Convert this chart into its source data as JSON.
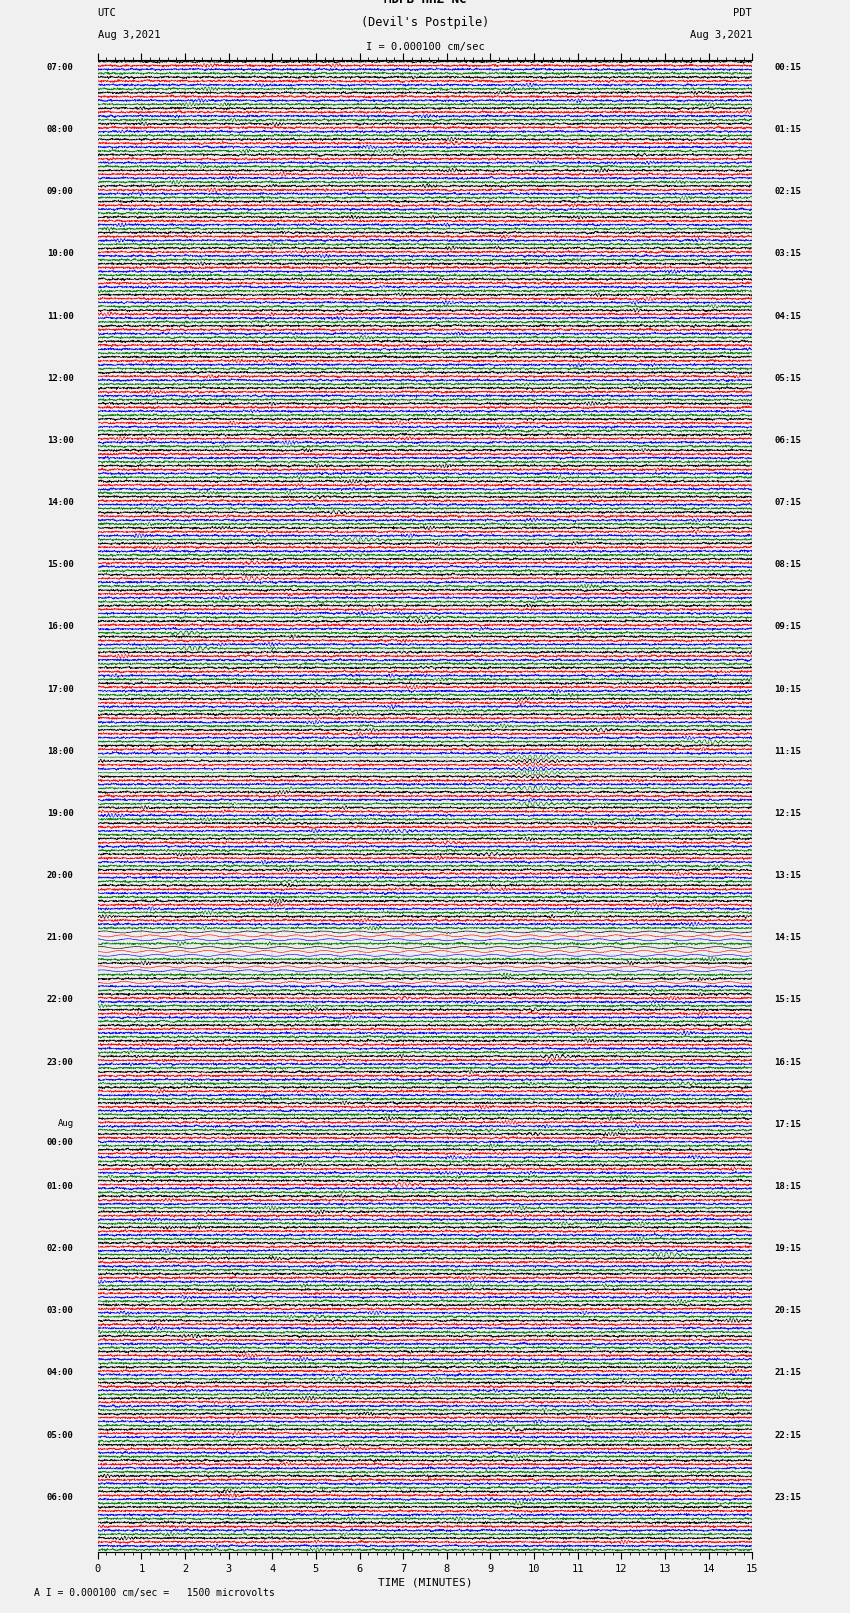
{
  "title_line1": "MDPB HHZ NC",
  "title_line2": "(Devil's Postpile)",
  "scale_label": "I = 0.000100 cm/sec",
  "footer_label": "A I = 0.000100 cm/sec =   1500 microvolts",
  "utc_label_line1": "UTC",
  "utc_label_line2": "Aug 3,2021",
  "pdt_label_line1": "PDT",
  "pdt_label_line2": "Aug 3,2021",
  "xlabel": "TIME (MINUTES)",
  "bg_color": "#f0f0f0",
  "trace_colors": [
    "black",
    "red",
    "blue",
    "green"
  ],
  "left_times_utc": [
    "07:00",
    "",
    "",
    "",
    "08:00",
    "",
    "",
    "",
    "09:00",
    "",
    "",
    "",
    "10:00",
    "",
    "",
    "",
    "11:00",
    "",
    "",
    "",
    "12:00",
    "",
    "",
    "",
    "13:00",
    "",
    "",
    "",
    "14:00",
    "",
    "",
    "",
    "15:00",
    "",
    "",
    "",
    "16:00",
    "",
    "",
    "",
    "17:00",
    "",
    "",
    "",
    "18:00",
    "",
    "",
    "",
    "19:00",
    "",
    "",
    "",
    "20:00",
    "",
    "",
    "",
    "21:00",
    "",
    "",
    "",
    "22:00",
    "",
    "",
    "",
    "23:00",
    "",
    "",
    "",
    "Aug",
    "00:00",
    "",
    "",
    "01:00",
    "",
    "",
    "",
    "02:00",
    "",
    "",
    "",
    "03:00",
    "",
    "",
    "",
    "04:00",
    "",
    "",
    "",
    "05:00",
    "",
    "",
    "",
    "06:00",
    "",
    "",
    ""
  ],
  "right_times_pdt": [
    "00:15",
    "",
    "",
    "",
    "01:15",
    "",
    "",
    "",
    "02:15",
    "",
    "",
    "",
    "03:15",
    "",
    "",
    "",
    "04:15",
    "",
    "",
    "",
    "05:15",
    "",
    "",
    "",
    "06:15",
    "",
    "",
    "",
    "07:15",
    "",
    "",
    "",
    "08:15",
    "",
    "",
    "",
    "09:15",
    "",
    "",
    "",
    "10:15",
    "",
    "",
    "",
    "11:15",
    "",
    "",
    "",
    "12:15",
    "",
    "",
    "",
    "13:15",
    "",
    "",
    "",
    "14:15",
    "",
    "",
    "",
    "15:15",
    "",
    "",
    "",
    "16:15",
    "",
    "",
    "",
    "17:15",
    "",
    "",
    "",
    "18:15",
    "",
    "",
    "",
    "19:15",
    "",
    "",
    "",
    "20:15",
    "",
    "",
    "",
    "21:15",
    "",
    "",
    "",
    "22:15",
    "",
    "",
    "",
    "23:15",
    "",
    "",
    ""
  ],
  "num_rows": 96,
  "traces_per_row": 4,
  "time_minutes": 15,
  "noise_seed": 12345
}
